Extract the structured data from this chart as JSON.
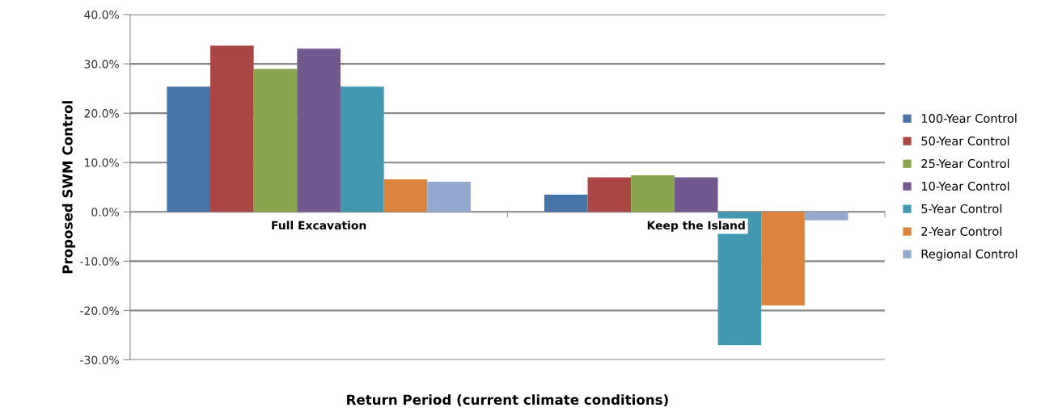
{
  "chart_data": {
    "type": "bar",
    "xlabel": "Return Period (current climate conditions)",
    "ylabel": "Proposed SWM Control",
    "categories": [
      "Full Excavation",
      "Keep the Island"
    ],
    "series": [
      {
        "name": "100-Year Control",
        "color": "#4572a7",
        "values": [
          25.4,
          3.5
        ]
      },
      {
        "name": "50-Year Control",
        "color": "#aa4643",
        "values": [
          33.7,
          7.0
        ]
      },
      {
        "name": "25-Year Control",
        "color": "#89a54e",
        "values": [
          29.0,
          7.4
        ]
      },
      {
        "name": "10-Year Control",
        "color": "#71588f",
        "values": [
          33.1,
          7.0
        ]
      },
      {
        "name": "5-Year Control",
        "color": "#4198af",
        "values": [
          25.4,
          -27.0
        ]
      },
      {
        "name": "2-Year Control",
        "color": "#db843d",
        "values": [
          6.6,
          -19.0
        ]
      },
      {
        "name": "Regional Control",
        "color": "#93a9cf",
        "values": [
          6.1,
          -1.7
        ]
      }
    ],
    "ylim": [
      -30,
      40
    ],
    "yticks": [
      {
        "value": -30,
        "label": "-30.0%"
      },
      {
        "value": -20,
        "label": "-20.0%"
      },
      {
        "value": -10,
        "label": "-10.0%"
      },
      {
        "value": 0,
        "label": "0.0%"
      },
      {
        "value": 10,
        "label": "10.0%"
      },
      {
        "value": 20,
        "label": "20.0%"
      },
      {
        "value": 30,
        "label": "30.0%"
      },
      {
        "value": 40,
        "label": "40.0%"
      }
    ],
    "grid": "y",
    "legend": "right"
  }
}
